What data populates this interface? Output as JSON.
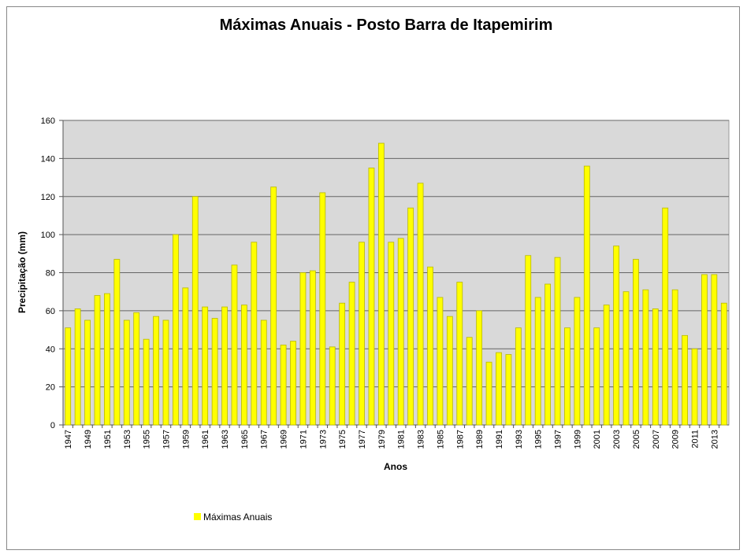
{
  "chart_data": {
    "type": "bar",
    "title": "Máximas Anuais - Posto Barra de Itapemirim",
    "x_label": "Anos",
    "y_label": "Precipitação (mm)",
    "categories": [
      "1947",
      null,
      "1949",
      null,
      "1951",
      null,
      "1953",
      null,
      "1955",
      null,
      "1957",
      null,
      "1959",
      null,
      "1961",
      null,
      "1963",
      null,
      "1965",
      null,
      "1967",
      null,
      "1969",
      null,
      "1971",
      null,
      "1973",
      null,
      "1975",
      null,
      "1977",
      null,
      "1979",
      null,
      "1981",
      null,
      "1983",
      null,
      "1985",
      null,
      "1987",
      null,
      "1989",
      null,
      "1991",
      null,
      "1993",
      null,
      "1995",
      null,
      "1997",
      null,
      "1999",
      null,
      "2001",
      null,
      "2003",
      null,
      "2005",
      null,
      "2007",
      null,
      "2009",
      null,
      "2011",
      null,
      "2013",
      null
    ],
    "series": [
      {
        "name": "Máximas Anuais",
        "color": "#ffff00",
        "values": [
          51,
          61,
          55,
          68,
          69,
          87,
          55,
          59,
          45,
          57,
          55,
          100,
          72,
          120,
          62,
          56,
          62,
          84,
          63,
          96,
          55,
          125,
          42,
          44,
          80,
          81,
          122,
          41,
          64,
          75,
          96,
          135,
          148,
          96,
          98,
          114,
          127,
          83,
          67,
          57,
          75,
          46,
          60,
          33,
          38,
          37,
          51,
          89,
          67,
          74,
          88,
          51,
          67,
          136,
          51,
          63,
          94,
          70,
          87,
          71,
          61,
          114,
          71,
          47,
          40,
          79,
          79,
          64
        ]
      }
    ],
    "ylim": [
      0,
      160
    ],
    "yticks": [
      0,
      20,
      40,
      60,
      80,
      100,
      120,
      140,
      160
    ],
    "grid": true,
    "legend": "bottom-left"
  }
}
